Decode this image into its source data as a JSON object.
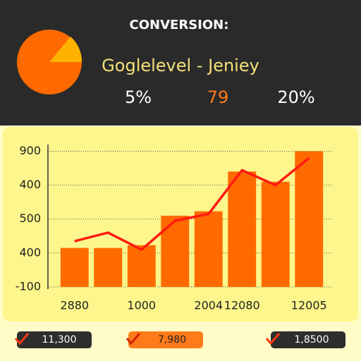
{
  "header": {
    "title": "CONVERSION:",
    "subtitle": "Goglelevel - Jeniey",
    "stats": [
      "5%",
      "79",
      "20%"
    ]
  },
  "chart_data": {
    "type": "bar",
    "categories": [
      "2880",
      null,
      "1000",
      null,
      "2004",
      "12080",
      null,
      "12005"
    ],
    "series": [
      {
        "color": "#ff6a00",
        "values": [
          1.15,
          1.15,
          1.23,
          2.1,
          2.23,
          3.4,
          3.1,
          4.0
        ]
      },
      {
        "type": "line",
        "color": "#ff1a10",
        "values": [
          1.35,
          1.6,
          1.1,
          1.95,
          2.15,
          3.44,
          3.0,
          3.8
        ]
      }
    ],
    "ylim": [
      0,
      4.3
    ],
    "yticks": [
      {
        "value": 0,
        "label": "-100"
      },
      {
        "value": 1,
        "label": "400"
      },
      {
        "value": 2,
        "label": "500"
      },
      {
        "value": 3,
        "label": "400"
      },
      {
        "value": 4,
        "label": "900"
      }
    ],
    "grid": true
  },
  "footer": [
    "11,300",
    "7,980",
    "1,8500"
  ]
}
